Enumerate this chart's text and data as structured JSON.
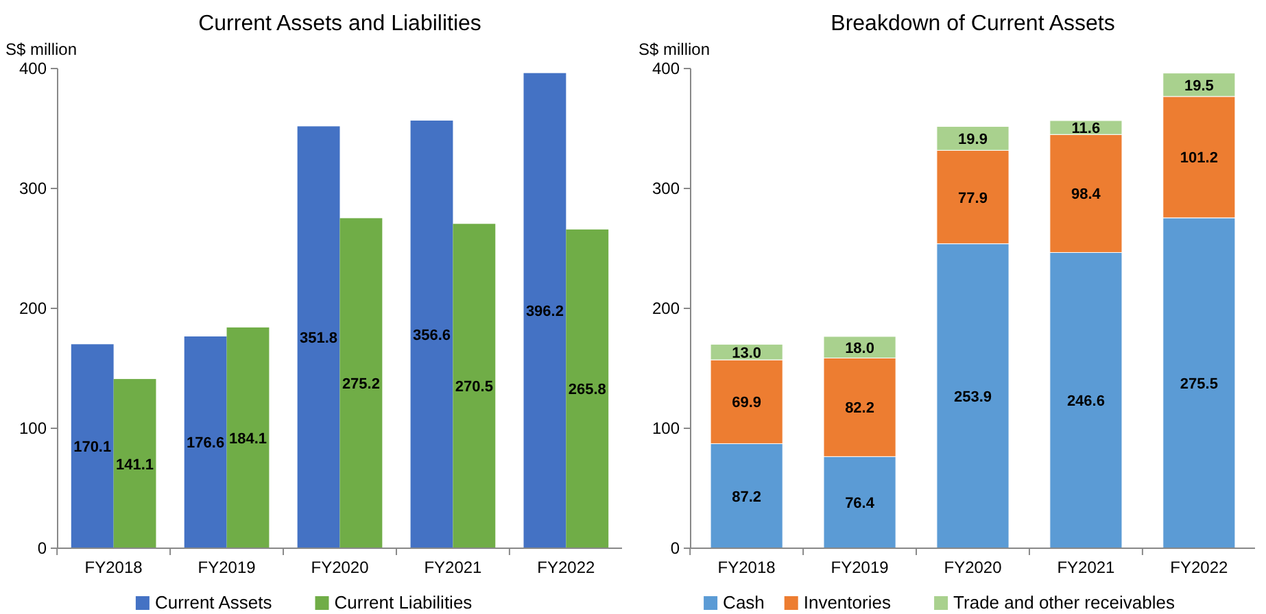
{
  "chart_data": [
    {
      "type": "bar",
      "title": "Current Assets and Liabilities",
      "ylabel": "S$ million",
      "categories": [
        "FY2018",
        "FY2019",
        "FY2020",
        "FY2021",
        "FY2022"
      ],
      "series": [
        {
          "name": "Current Assets",
          "color": "#4472c4",
          "values": [
            170.1,
            176.6,
            351.8,
            356.6,
            396.2
          ]
        },
        {
          "name": "Current Liabilities",
          "color": "#70ad47",
          "values": [
            141.1,
            184.1,
            275.2,
            270.5,
            265.8
          ]
        }
      ],
      "ylim": [
        0,
        400
      ],
      "yticks": [
        0,
        100,
        200,
        300,
        400
      ],
      "grid": false,
      "legend": "bottom",
      "data_labels": true
    },
    {
      "type": "bar",
      "title": "Breakdown of Current Assets",
      "ylabel": "S$ million",
      "categories": [
        "FY2018",
        "FY2019",
        "FY2020",
        "FY2021",
        "FY2022"
      ],
      "stacked": true,
      "series": [
        {
          "name": "Cash",
          "color": "#5b9bd5",
          "values": [
            87.2,
            76.4,
            253.9,
            246.6,
            275.5
          ]
        },
        {
          "name": "Inventories",
          "color": "#ed7d31",
          "values": [
            69.9,
            82.2,
            77.9,
            98.4,
            101.2
          ]
        },
        {
          "name": "Trade and other receivables",
          "color": "#a9d18e",
          "values": [
            13.0,
            18.0,
            19.9,
            11.6,
            19.5
          ],
          "value_labels": [
            "13.0",
            "18.0",
            "19.9",
            "11.6",
            "19.5"
          ]
        }
      ],
      "ylim": [
        0,
        400
      ],
      "yticks": [
        0,
        100,
        200,
        300,
        400
      ],
      "grid": false,
      "legend": "bottom",
      "data_labels": true
    }
  ]
}
